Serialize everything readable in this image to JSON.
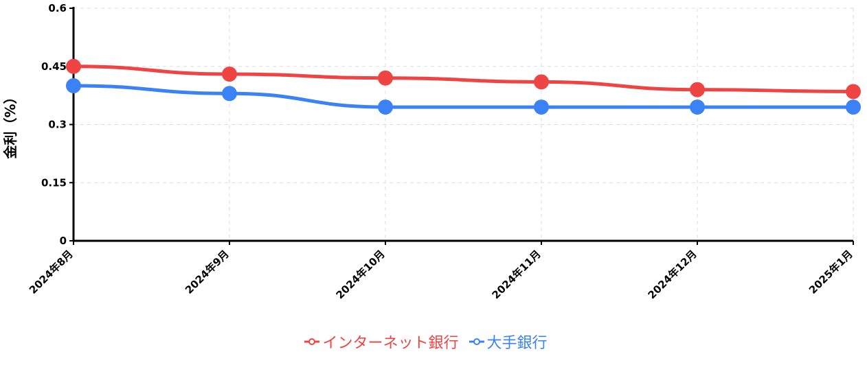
{
  "chart_data": {
    "type": "line",
    "categories": [
      "2024年8月",
      "2024年9月",
      "2024年10月",
      "2024年11月",
      "2024年12月",
      "2025年1月"
    ],
    "series": [
      {
        "name": "インターネット銀行",
        "color": "#ef4444",
        "values": [
          0.45,
          0.43,
          0.42,
          0.41,
          0.39,
          0.385
        ]
      },
      {
        "name": "大手銀行",
        "color": "#3b82f6",
        "values": [
          0.4,
          0.38,
          0.345,
          0.345,
          0.345,
          0.345
        ]
      }
    ],
    "yticks": [
      "0",
      "0.15",
      "0.3",
      "0.45",
      "0.6"
    ],
    "ylim": [
      0,
      0.6
    ],
    "xlabel": "",
    "ylabel": "金利（%）",
    "grid": true,
    "legend_position": "bottom"
  }
}
